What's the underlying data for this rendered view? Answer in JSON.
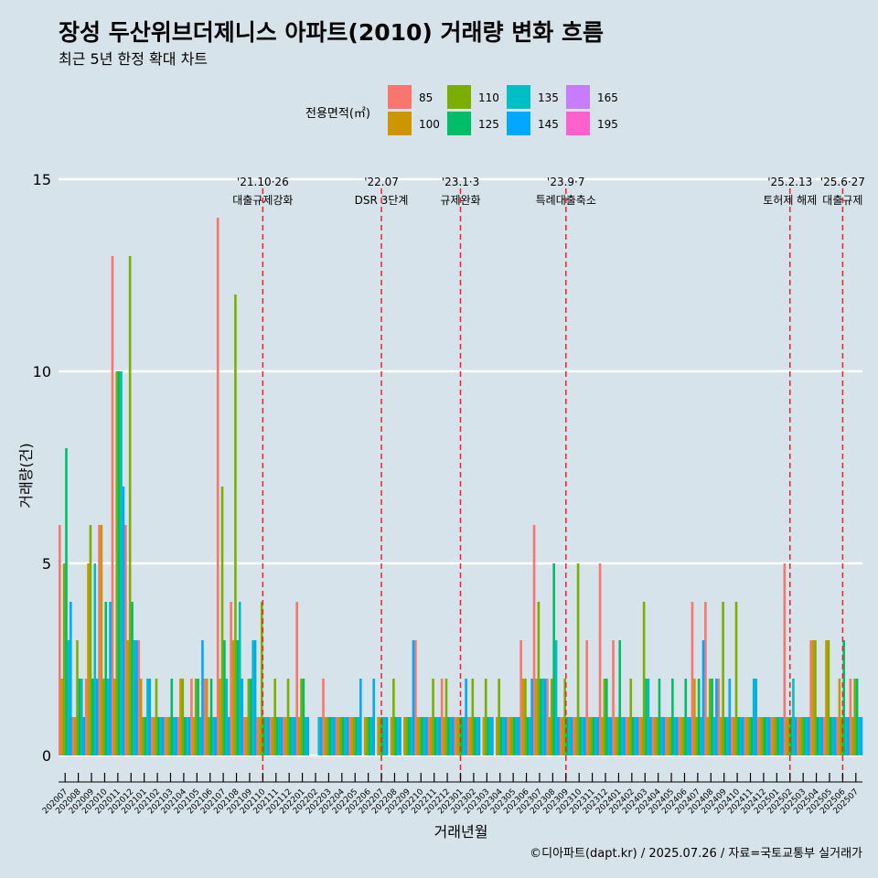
{
  "title": "장성 두산위브더제니스 아파트(2010) 거래량 변화 흐름",
  "subtitle": "최근 5년 한정 확대 차트",
  "caption": "©디아파트(dapt.kr) / 2025.07.26 / 자료=국토교통부 실거래가",
  "chart_data": {
    "type": "bar",
    "xlabel": "거래년월",
    "ylabel": "거래량(건)",
    "ylim": [
      0,
      15
    ],
    "yticks": [
      0,
      5,
      10,
      15
    ],
    "legend": {
      "title": "전용면적(㎡)",
      "position": "top",
      "entries": [
        {
          "name": "85",
          "color": "#F8766D"
        },
        {
          "name": "100",
          "color": "#CD9600"
        },
        {
          "name": "110",
          "color": "#7CAE00"
        },
        {
          "name": "125",
          "color": "#00BE67"
        },
        {
          "name": "135",
          "color": "#00BFC4"
        },
        {
          "name": "145",
          "color": "#00A9FF"
        },
        {
          "name": "165",
          "color": "#C77CFF"
        },
        {
          "name": "195",
          "color": "#FF61CC"
        }
      ]
    },
    "categories": [
      "202007",
      "202008",
      "202009",
      "202010",
      "202011",
      "202012",
      "202101",
      "202102",
      "202103",
      "202104",
      "202105",
      "202106",
      "202107",
      "202108",
      "202109",
      "202110",
      "202111",
      "202112",
      "202201",
      "202202",
      "202203",
      "202204",
      "202205",
      "202206",
      "202207",
      "202208",
      "202209",
      "202210",
      "202211",
      "202212",
      "202301",
      "202302",
      "202303",
      "202304",
      "202305",
      "202306",
      "202307",
      "202308",
      "202309",
      "202310",
      "202311",
      "202312",
      "202401",
      "202402",
      "202403",
      "202404",
      "202405",
      "202406",
      "202407",
      "202408",
      "202409",
      "202410",
      "202411",
      "202412",
      "202501",
      "202502",
      "202503",
      "202504",
      "202505",
      "202506",
      "202507"
    ],
    "series": [
      {
        "name": "85",
        "values": [
          6,
          1,
          2,
          6,
          13,
          6,
          3,
          1,
          1,
          1,
          2,
          2,
          14,
          4,
          1,
          1,
          1,
          1,
          4,
          0,
          2,
          1,
          1,
          0,
          0,
          0,
          0,
          3,
          1,
          2,
          1,
          1,
          0,
          0,
          1,
          3,
          6,
          2,
          1,
          1,
          3,
          5,
          3,
          1,
          1,
          1,
          1,
          1,
          4,
          4,
          2,
          1,
          1,
          1,
          1,
          5,
          1,
          3,
          1,
          1,
          2
        ]
      },
      {
        "name": "100",
        "values": [
          2,
          1,
          5,
          6,
          2,
          3,
          2,
          1,
          1,
          2,
          1,
          2,
          2,
          3,
          1,
          1,
          1,
          1,
          1,
          0,
          1,
          1,
          1,
          1,
          1,
          1,
          1,
          1,
          1,
          1,
          1,
          1,
          1,
          1,
          1,
          2,
          2,
          1,
          1,
          1,
          1,
          1,
          1,
          1,
          1,
          1,
          1,
          1,
          2,
          1,
          1,
          1,
          1,
          1,
          1,
          1,
          1,
          3,
          3,
          2,
          1
        ]
      },
      {
        "name": "110",
        "values": [
          5,
          3,
          6,
          2,
          10,
          13,
          1,
          2,
          1,
          2,
          2,
          1,
          7,
          12,
          2,
          4,
          2,
          2,
          2,
          0,
          1,
          1,
          1,
          1,
          1,
          2,
          1,
          1,
          2,
          2,
          1,
          2,
          2,
          2,
          1,
          2,
          4,
          2,
          2,
          5,
          1,
          2,
          1,
          2,
          4,
          1,
          1,
          1,
          1,
          2,
          4,
          4,
          1,
          1,
          1,
          1,
          1,
          3,
          3,
          1,
          2
        ]
      },
      {
        "name": "125",
        "values": [
          8,
          2,
          2,
          4,
          10,
          4,
          1,
          1,
          2,
          1,
          2,
          2,
          3,
          3,
          2,
          1,
          1,
          1,
          2,
          0,
          1,
          1,
          1,
          1,
          1,
          1,
          1,
          1,
          1,
          1,
          1,
          1,
          1,
          1,
          1,
          1,
          2,
          5,
          1,
          1,
          1,
          2,
          3,
          1,
          2,
          2,
          2,
          2,
          2,
          2,
          1,
          1,
          1,
          1,
          1,
          1,
          1,
          1,
          1,
          3,
          2
        ]
      },
      {
        "name": "135",
        "values": [
          3,
          2,
          5,
          2,
          10,
          3,
          2,
          1,
          1,
          1,
          1,
          1,
          2,
          4,
          3,
          1,
          1,
          1,
          1,
          1,
          1,
          1,
          1,
          1,
          1,
          1,
          1,
          1,
          1,
          1,
          1,
          1,
          1,
          1,
          1,
          1,
          2,
          3,
          1,
          1,
          1,
          1,
          1,
          1,
          2,
          1,
          1,
          1,
          1,
          1,
          1,
          1,
          2,
          1,
          1,
          2,
          1,
          1,
          1,
          1,
          1
        ]
      },
      {
        "name": "145",
        "values": [
          4,
          1,
          2,
          4,
          7,
          3,
          2,
          1,
          1,
          1,
          3,
          1,
          1,
          2,
          3,
          1,
          1,
          1,
          1,
          1,
          1,
          1,
          2,
          2,
          1,
          1,
          3,
          1,
          1,
          1,
          2,
          1,
          1,
          1,
          1,
          2,
          2,
          1,
          1,
          1,
          1,
          1,
          1,
          1,
          1,
          1,
          1,
          1,
          3,
          2,
          2,
          1,
          2,
          1,
          1,
          1,
          1,
          1,
          1,
          1,
          1
        ]
      }
    ],
    "annotations": [
      {
        "month": "202110",
        "label1": "'21.10·26",
        "label2": "대출규제강화"
      },
      {
        "month": "202207",
        "label1": "'22.07",
        "label2": "DSR 3단계"
      },
      {
        "month": "202301",
        "label1": "'23.1·3",
        "label2": "규제완화"
      },
      {
        "month": "202309",
        "label1": "'23.9·7",
        "label2": "특례대출축소"
      },
      {
        "month": "202502",
        "label1": "'25.2.13",
        "label2": "토허제 해제"
      },
      {
        "month": "202506",
        "label1": "'25.6·27",
        "label2": "대출규제"
      }
    ]
  }
}
